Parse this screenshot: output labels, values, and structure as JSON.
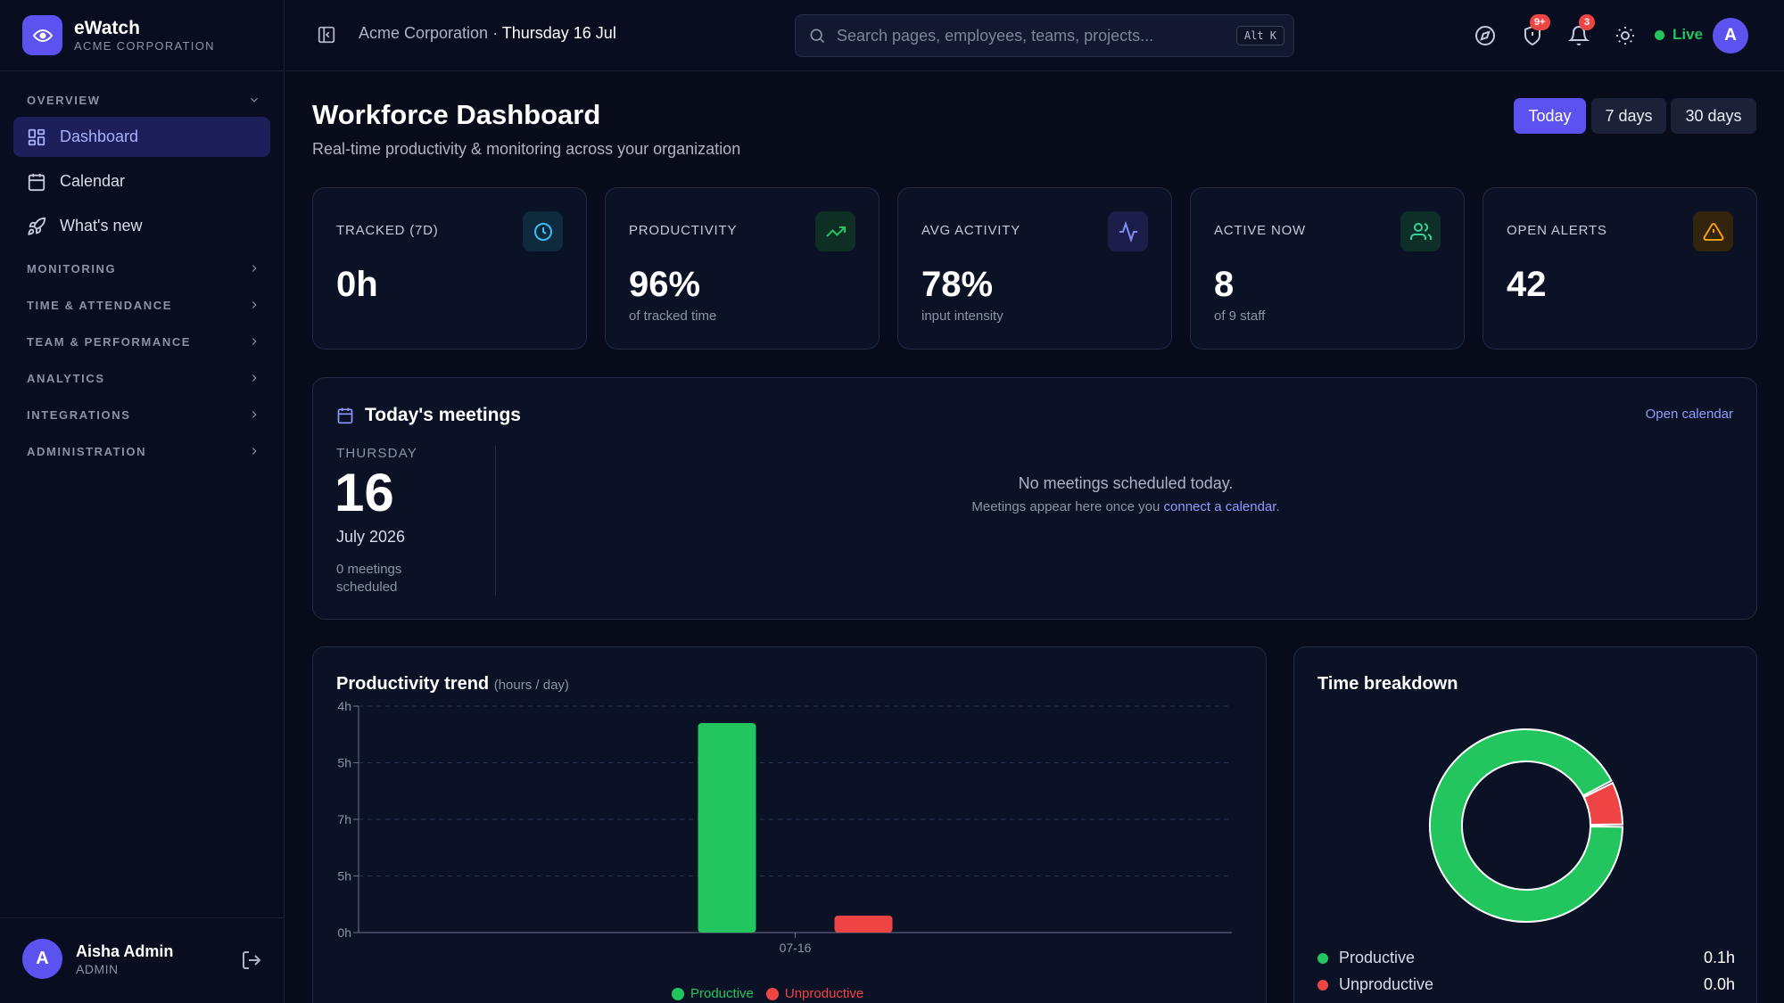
{
  "brand": {
    "name": "eWatch",
    "org": "ACME CORPORATION"
  },
  "sidebar": {
    "overview_label": "OVERVIEW",
    "items": [
      {
        "label": "Dashboard",
        "icon": "dashboard-grid-icon",
        "active": true
      },
      {
        "label": "Calendar",
        "icon": "calendar-icon",
        "active": false
      },
      {
        "label": "What's new",
        "icon": "rocket-icon",
        "active": false
      }
    ],
    "sections": [
      "MONITORING",
      "TIME & ATTENDANCE",
      "TEAM & PERFORMANCE",
      "ANALYTICS",
      "INTEGRATIONS",
      "ADMINISTRATION"
    ],
    "user": {
      "initial": "A",
      "name": "Aisha Admin",
      "role": "ADMIN"
    }
  },
  "header": {
    "org": "Acme Corporation",
    "separator": " · ",
    "date": "Thursday 16 Jul",
    "search_placeholder": "Search pages, employees, teams, projects...",
    "shortcut": "Alt K",
    "shield_badge": "9+",
    "bell_badge": "3",
    "live_label": "Live",
    "avatar_initial": "A"
  },
  "page": {
    "title": "Workforce Dashboard",
    "subtitle": "Real-time productivity & monitoring across your organization",
    "ranges": [
      {
        "label": "Today",
        "active": true
      },
      {
        "label": "7 days",
        "active": false
      },
      {
        "label": "30 days",
        "active": false
      }
    ]
  },
  "stats": [
    {
      "label": "TRACKED (7D)",
      "value": "0h",
      "sub": "",
      "icon": "clock-icon",
      "color": "#38bdf8"
    },
    {
      "label": "PRODUCTIVITY",
      "value": "96%",
      "sub": "of tracked time",
      "icon": "trending-up-icon",
      "color": "#22c55e"
    },
    {
      "label": "AVG ACTIVITY",
      "value": "78%",
      "sub": "input intensity",
      "icon": "activity-pulse-icon",
      "color": "#818cf8"
    },
    {
      "label": "ACTIVE NOW",
      "value": "8",
      "sub": "of 9 staff",
      "icon": "users-icon",
      "color": "#34d399"
    },
    {
      "label": "OPEN ALERTS",
      "value": "42",
      "sub": "",
      "icon": "warning-triangle-icon",
      "color": "#f59e0b"
    }
  ],
  "meetings": {
    "title": "Today's meetings",
    "open_calendar": "Open calendar",
    "weekday": "THURSDAY",
    "day": "16",
    "month_year": "July 2026",
    "count_text": "0 meetings scheduled",
    "empty_title": "No meetings scheduled today.",
    "empty_sub_prefix": "Meetings appear here once you ",
    "empty_sub_link": "connect a calendar",
    "empty_sub_suffix": "."
  },
  "trend": {
    "title": "Productivity trend",
    "unit": "(hours / day)"
  },
  "breakdown": {
    "title": "Time breakdown",
    "rows": [
      {
        "label": "Productive",
        "value": "0.1h",
        "color": "#22c55e"
      },
      {
        "label": "Unproductive",
        "value": "0.0h",
        "color": "#ef4444"
      }
    ]
  },
  "chart_data": {
    "type": "bar",
    "categories": [
      "07-16"
    ],
    "series": [
      {
        "name": "Productive",
        "values": [
          0.111
        ],
        "color": "#22c55e"
      },
      {
        "name": "Unproductive",
        "values": [
          0.009
        ],
        "color": "#ef4444"
      }
    ],
    "y_ticks": [
      "0h",
      "5h",
      "7h",
      "5h",
      "4h"
    ],
    "ylim": [
      0,
      0.12
    ],
    "grid": true,
    "legend": "bottom-center"
  }
}
